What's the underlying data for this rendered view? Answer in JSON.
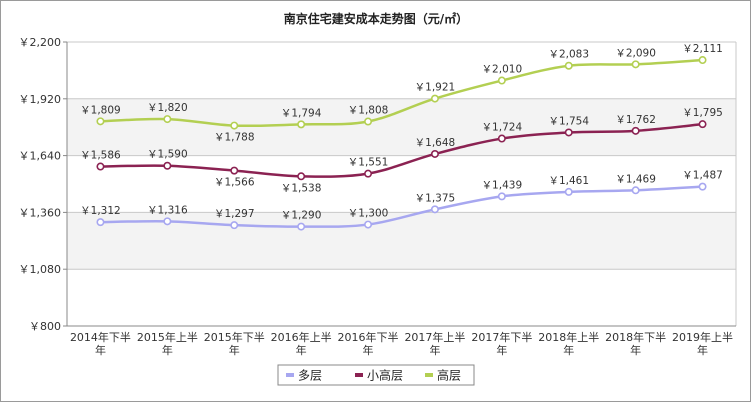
{
  "chart_data": {
    "type": "line",
    "title": "南京住宅建安成本走势图（元/㎡）",
    "categories": [
      [
        "2014年下半",
        "年"
      ],
      [
        "2015年上半",
        "年"
      ],
      [
        "2015年下半",
        "年"
      ],
      [
        "2016年上半",
        "年"
      ],
      [
        "2016年下半",
        "年"
      ],
      [
        "2017年上半",
        "年"
      ],
      [
        "2017年下半",
        "年"
      ],
      [
        "2018年上半",
        "年"
      ],
      [
        "2018年下半",
        "年"
      ],
      [
        "2019年上半",
        "年"
      ]
    ],
    "y_ticks": [
      "￥800",
      "￥1,080",
      "￥1,360",
      "￥1,640",
      "￥1,920",
      "￥2,200"
    ],
    "ylim": [
      800,
      2200
    ],
    "grid": true,
    "legend_position": "bottom",
    "series": [
      {
        "name": "多层",
        "color": "#a7a7f0",
        "values": [
          1312,
          1316,
          1297,
          1290,
          1300,
          1375,
          1439,
          1461,
          1469,
          1487
        ],
        "labels": [
          "￥1,312",
          "￥1,316",
          "￥1,297",
          "￥1,290",
          "￥1,300",
          "￥1,375",
          "￥1,439",
          "￥1,461",
          "￥1,469",
          "￥1,487"
        ],
        "label_pos": [
          "above",
          "above",
          "above",
          "above",
          "above",
          "above",
          "above",
          "above",
          "above",
          "above"
        ]
      },
      {
        "name": "小高层",
        "color": "#8b2252",
        "values": [
          1586,
          1590,
          1566,
          1538,
          1551,
          1648,
          1724,
          1754,
          1762,
          1795
        ],
        "labels": [
          "￥1,586",
          "￥1,590",
          "￥1,566",
          "￥1,538",
          "￥1,551",
          "￥1,648",
          "￥1,724",
          "￥1,754",
          "￥1,762",
          "￥1,795"
        ],
        "label_pos": [
          "above",
          "above",
          "below",
          "below",
          "above",
          "above",
          "above",
          "above",
          "above",
          "above"
        ]
      },
      {
        "name": "高层",
        "color": "#b3cf52",
        "values": [
          1809,
          1820,
          1788,
          1794,
          1808,
          1921,
          2010,
          2083,
          2090,
          2111
        ],
        "labels": [
          "￥1,809",
          "￥1,820",
          "￥1,788",
          "￥1,794",
          "￥1,808",
          "￥1,921",
          "￥2,010",
          "￥2,083",
          "￥2,090",
          "￥2,111"
        ],
        "label_pos": [
          "above",
          "above",
          "below",
          "above",
          "above",
          "above",
          "above",
          "above",
          "above",
          "above"
        ]
      }
    ]
  }
}
